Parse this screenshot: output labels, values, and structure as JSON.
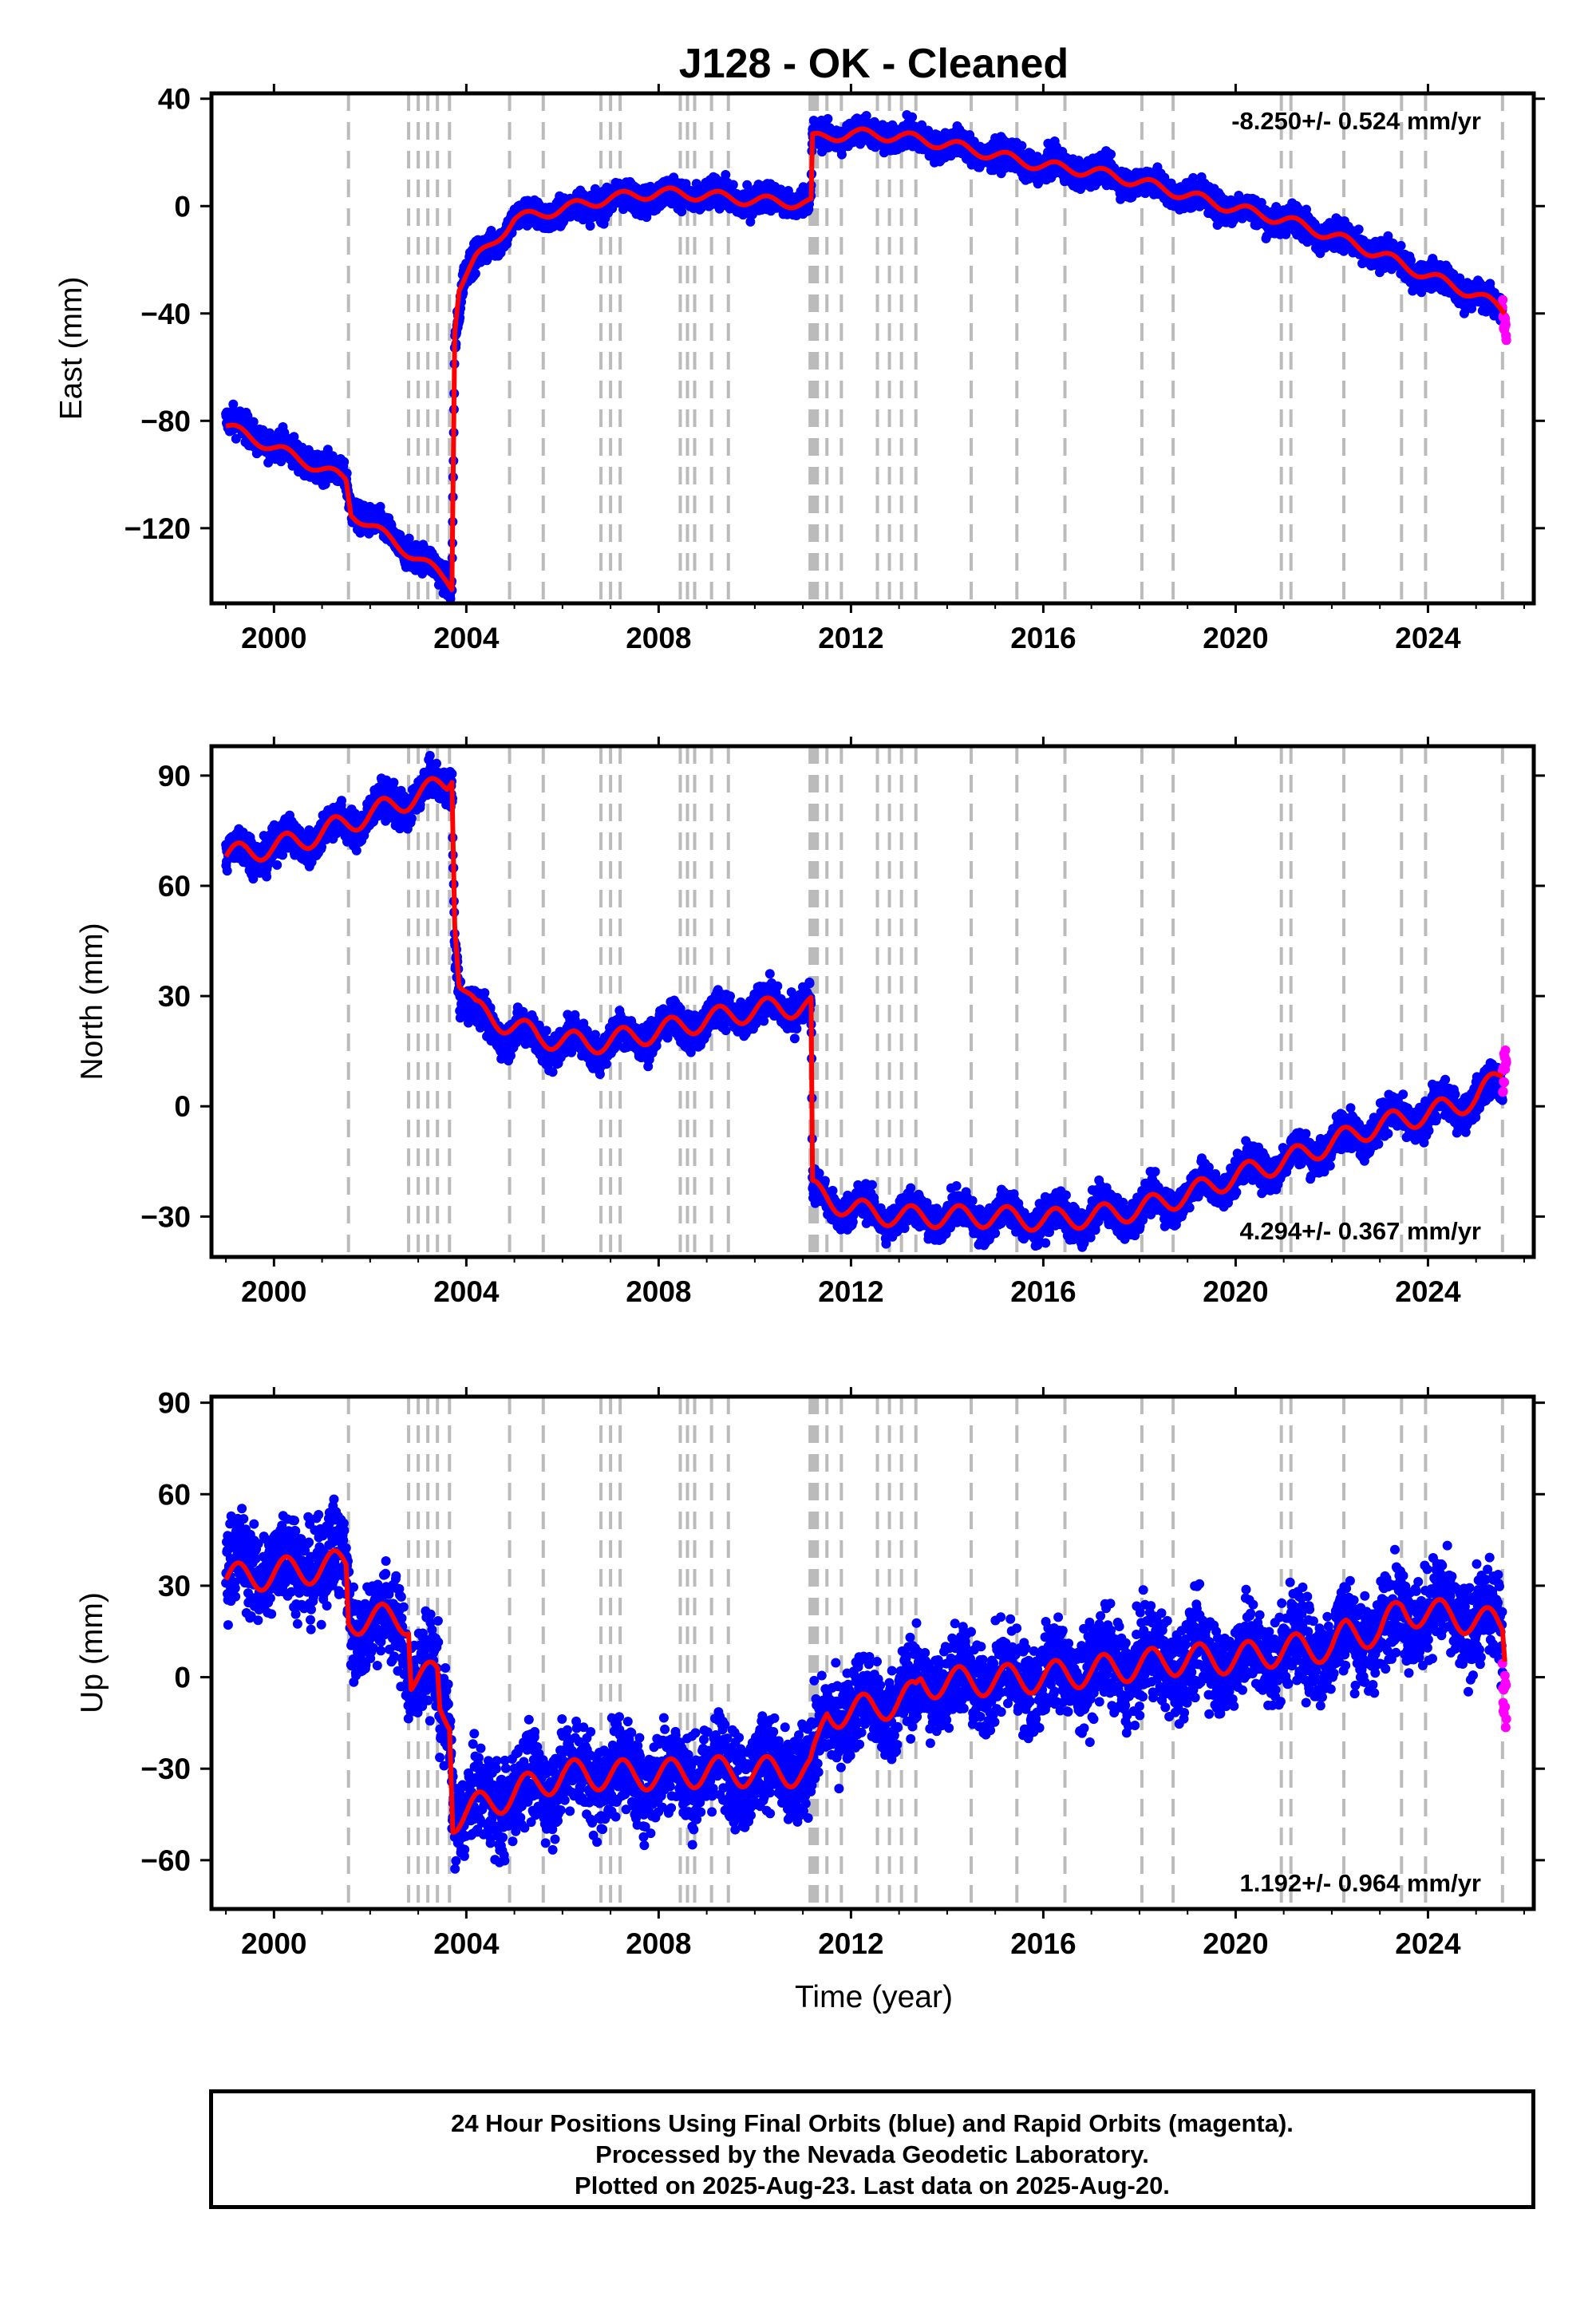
{
  "chart_data": {
    "type": "scatter",
    "title": "J128  - OK - Cleaned",
    "xlabel": "Time (year)",
    "xlim": [
      1998.7,
      2026.2
    ],
    "x_ticks": [
      2000,
      2004,
      2008,
      2012,
      2016,
      2020,
      2024
    ],
    "grid": false,
    "legend": "none",
    "colors": {
      "final_orbits": "#0000ff",
      "rapid_orbits": "#ff00ff",
      "model": "#ff0000",
      "breaks": "#bbbbbb"
    },
    "step_epochs": [
      2001.55,
      2002.8,
      2003.0,
      2003.2,
      2003.4,
      2003.65,
      2004.9,
      2005.6,
      2006.8,
      2007.0,
      2007.2,
      2008.45,
      2008.6,
      2008.75,
      2009.1,
      2009.45,
      2011.15,
      2011.2,
      2011.25,
      2011.3,
      2011.5,
      2011.8,
      2012.55,
      2012.8,
      2013.05,
      2013.35,
      2014.5,
      2015.45,
      2016.45,
      2018.05,
      2018.7,
      2020.95,
      2021.15,
      2022.25,
      2023.45,
      2023.95,
      2025.55
    ],
    "panels": [
      {
        "ylabel": "East (mm)",
        "ylim": [
          -148,
          42
        ],
        "y_ticks": [
          40,
          0,
          -40,
          -80,
          -120
        ],
        "y_tick_labels": [
          "40",
          "0",
          "−40",
          "−80",
          "−120"
        ],
        "rate_text": "-8.250+/- 0.524 mm/yr",
        "rate_position": "top-right",
        "noise_mm": 2.6,
        "season_amp_mm": 2.0,
        "series": [
          {
            "name": "Final Orbits",
            "data": [
              [
                1999.0,
                -80
              ],
              [
                2001.5,
                -102
              ],
              [
                2001.6,
                -112
              ],
              [
                2003.6,
                -139
              ],
              [
                2003.7,
                -141
              ],
              [
                2003.76,
                -50
              ],
              [
                2003.95,
                -25
              ],
              [
                2004.5,
                -15
              ],
              [
                2005.0,
                -5
              ],
              [
                2006.0,
                -2
              ],
              [
                2007.0,
                2
              ],
              [
                2008.0,
                4
              ],
              [
                2009.0,
                4
              ],
              [
                2010.0,
                2
              ],
              [
                2011.17,
                2
              ],
              [
                2011.2,
                25
              ],
              [
                2012.0,
                27
              ],
              [
                2013.0,
                26
              ],
              [
                2014.0,
                23
              ],
              [
                2015.0,
                19
              ],
              [
                2016.0,
                15
              ],
              [
                2017.0,
                13
              ],
              [
                2018.0,
                9
              ],
              [
                2019.0,
                4
              ],
              [
                2020.0,
                -1
              ],
              [
                2021.0,
                -5
              ],
              [
                2022.0,
                -11
              ],
              [
                2023.0,
                -18
              ],
              [
                2024.0,
                -26
              ],
              [
                2025.0,
                -33
              ],
              [
                2025.55,
                -40
              ]
            ]
          },
          {
            "name": "Rapid Orbits",
            "data": [
              [
                2025.55,
                -38
              ],
              [
                2025.63,
                -47
              ]
            ]
          }
        ],
        "model": [
          [
            1999.0,
            -82
          ],
          [
            2001.5,
            -102
          ],
          [
            2001.6,
            -114
          ],
          [
            2003.6,
            -139
          ],
          [
            2003.7,
            -141
          ],
          [
            2003.76,
            -45
          ],
          [
            2003.85,
            -30
          ],
          [
            2004.2,
            -20
          ],
          [
            2005.0,
            -5
          ],
          [
            2006.0,
            -1
          ],
          [
            2007.0,
            3
          ],
          [
            2008.0,
            5
          ],
          [
            2009.0,
            4
          ],
          [
            2010.0,
            2
          ],
          [
            2011.17,
            1
          ],
          [
            2011.2,
            25
          ],
          [
            2012.0,
            27
          ],
          [
            2013.0,
            26
          ],
          [
            2014.0,
            23
          ],
          [
            2015.0,
            19
          ],
          [
            2016.0,
            15
          ],
          [
            2017.0,
            13
          ],
          [
            2018.0,
            9
          ],
          [
            2019.0,
            4
          ],
          [
            2020.0,
            -1
          ],
          [
            2021.0,
            -5
          ],
          [
            2022.0,
            -11
          ],
          [
            2023.0,
            -18
          ],
          [
            2024.0,
            -26
          ],
          [
            2025.0,
            -33
          ],
          [
            2025.6,
            -39
          ]
        ]
      },
      {
        "ylabel": "North (mm)",
        "ylim": [
          -41,
          98
        ],
        "y_ticks": [
          90,
          60,
          30,
          0,
          -30
        ],
        "y_tick_labels": [
          "90",
          "60",
          "30",
          "0",
          "−30"
        ],
        "rate_text": "4.294+/- 0.367 mm/yr",
        "rate_position": "bottom-right",
        "noise_mm": 2.4,
        "season_amp_mm": 3.0,
        "series": [
          {
            "name": "Final Orbits",
            "data": [
              [
                1999.0,
                68
              ],
              [
                2000.5,
                72
              ],
              [
                2001.5,
                77
              ],
              [
                2002.5,
                82
              ],
              [
                2003.6,
                88
              ],
              [
                2003.7,
                90
              ],
              [
                2003.76,
                47
              ],
              [
                2003.9,
                28
              ],
              [
                2004.5,
                22
              ],
              [
                2005.5,
                18
              ],
              [
                2006.5,
                17
              ],
              [
                2007.5,
                19
              ],
              [
                2008.5,
                22
              ],
              [
                2009.5,
                25
              ],
              [
                2010.5,
                27
              ],
              [
                2011.17,
                28
              ],
              [
                2011.2,
                -24
              ],
              [
                2012.0,
                -28
              ],
              [
                2013.0,
                -30
              ],
              [
                2014.0,
                -30
              ],
              [
                2015.0,
                -30
              ],
              [
                2016.0,
                -31
              ],
              [
                2017.0,
                -30
              ],
              [
                2018.0,
                -28
              ],
              [
                2019.0,
                -24
              ],
              [
                2020.0,
                -19
              ],
              [
                2021.0,
                -15
              ],
              [
                2022.0,
                -10
              ],
              [
                2023.0,
                -5
              ],
              [
                2024.0,
                -2
              ],
              [
                2025.0,
                2
              ],
              [
                2025.55,
                6
              ]
            ]
          },
          {
            "name": "Rapid Orbits",
            "data": [
              [
                2025.55,
                8
              ],
              [
                2025.63,
                15
              ]
            ]
          }
        ],
        "model": [
          [
            1999.0,
            68
          ],
          [
            2000.5,
            72
          ],
          [
            2001.5,
            77
          ],
          [
            2002.5,
            82
          ],
          [
            2003.6,
            88
          ],
          [
            2003.7,
            91
          ],
          [
            2003.76,
            52
          ],
          [
            2003.85,
            35
          ],
          [
            2004.2,
            26
          ],
          [
            2005.5,
            19
          ],
          [
            2006.5,
            17
          ],
          [
            2007.5,
            19
          ],
          [
            2008.5,
            22
          ],
          [
            2009.5,
            25
          ],
          [
            2010.5,
            27
          ],
          [
            2011.17,
            27
          ],
          [
            2011.2,
            -23
          ],
          [
            2012.0,
            -28
          ],
          [
            2013.0,
            -30
          ],
          [
            2014.0,
            -30
          ],
          [
            2015.0,
            -30
          ],
          [
            2016.0,
            -31
          ],
          [
            2017.0,
            -30
          ],
          [
            2018.0,
            -28
          ],
          [
            2019.0,
            -24
          ],
          [
            2020.0,
            -19
          ],
          [
            2021.0,
            -15
          ],
          [
            2022.0,
            -10
          ],
          [
            2023.0,
            -5
          ],
          [
            2024.0,
            -2
          ],
          [
            2025.0,
            2
          ],
          [
            2025.55,
            9
          ]
        ]
      },
      {
        "ylabel": "Up (mm)",
        "ylim": [
          -76,
          92
        ],
        "y_ticks": [
          90,
          60,
          30,
          0,
          -30,
          -60
        ],
        "y_tick_labels": [
          "90",
          "60",
          "30",
          "0",
          "−30",
          "−60"
        ],
        "rate_text": "1.192+/- 0.964 mm/yr",
        "rate_position": "bottom-right",
        "noise_mm": 7.5,
        "season_amp_mm": 5.0,
        "series": [
          {
            "name": "Final Orbits",
            "data": [
              [
                1999.0,
                35
              ],
              [
                2000.5,
                37
              ],
              [
                2001.5,
                38
              ],
              [
                2001.6,
                18
              ],
              [
                2002.7,
                18
              ],
              [
                2002.8,
                0
              ],
              [
                2003.4,
                0
              ],
              [
                2003.45,
                -12
              ],
              [
                2003.65,
                -12
              ],
              [
                2003.75,
                -45
              ],
              [
                2005.0,
                -38
              ],
              [
                2006.0,
                -32
              ],
              [
                2007.0,
                -32
              ],
              [
                2008.0,
                -32
              ],
              [
                2009.0,
                -31
              ],
              [
                2010.0,
                -31
              ],
              [
                2011.1,
                -31
              ],
              [
                2011.3,
                -25
              ],
              [
                2011.5,
                -12
              ],
              [
                2012.5,
                -10
              ],
              [
                2013.4,
                -6
              ],
              [
                2013.5,
                -2
              ],
              [
                2015.0,
                -1
              ],
              [
                2016.0,
                0
              ],
              [
                2017.0,
                2
              ],
              [
                2018.0,
                4
              ],
              [
                2019.0,
                6
              ],
              [
                2020.0,
                6
              ],
              [
                2021.0,
                9
              ],
              [
                2022.0,
                10
              ],
              [
                2022.3,
                14
              ],
              [
                2023.0,
                15
              ],
              [
                2023.5,
                22
              ],
              [
                2024.5,
                20
              ],
              [
                2025.55,
                16
              ]
            ]
          },
          {
            "name": "Rapid Orbits",
            "data": [
              [
                2025.55,
                2
              ],
              [
                2025.63,
                -6
              ]
            ]
          }
        ],
        "model": [
          [
            1999.0,
            32
          ],
          [
            2000.5,
            35
          ],
          [
            2001.5,
            37
          ],
          [
            2001.55,
            19
          ],
          [
            2002.8,
            19
          ],
          [
            2002.85,
            0
          ],
          [
            2003.4,
            0
          ],
          [
            2003.45,
            -12
          ],
          [
            2003.65,
            -13
          ],
          [
            2003.72,
            -46
          ],
          [
            2005.0,
            -38
          ],
          [
            2006.0,
            -32
          ],
          [
            2007.0,
            -32
          ],
          [
            2008.0,
            -32
          ],
          [
            2009.0,
            -31
          ],
          [
            2010.0,
            -31
          ],
          [
            2011.15,
            -31
          ],
          [
            2011.3,
            -24
          ],
          [
            2011.5,
            -12
          ],
          [
            2012.5,
            -10
          ],
          [
            2013.35,
            -6
          ],
          [
            2013.45,
            -2
          ],
          [
            2015.0,
            -1
          ],
          [
            2016.0,
            0
          ],
          [
            2017.0,
            2
          ],
          [
            2018.0,
            4
          ],
          [
            2019.0,
            6
          ],
          [
            2020.0,
            6
          ],
          [
            2021.0,
            9
          ],
          [
            2022.0,
            10
          ],
          [
            2022.3,
            14
          ],
          [
            2023.0,
            15
          ],
          [
            2023.45,
            22
          ],
          [
            2024.5,
            20
          ],
          [
            2025.55,
            17
          ],
          [
            2025.6,
            8
          ]
        ]
      }
    ]
  },
  "caption": {
    "line1": "24 Hour Positions Using Final Orbits (blue) and Rapid Orbits (magenta).",
    "line2": "Processed by the Nevada Geodetic Laboratory.",
    "line3": "Plotted on 2025-Aug-23. Last data on 2025-Aug-20."
  }
}
